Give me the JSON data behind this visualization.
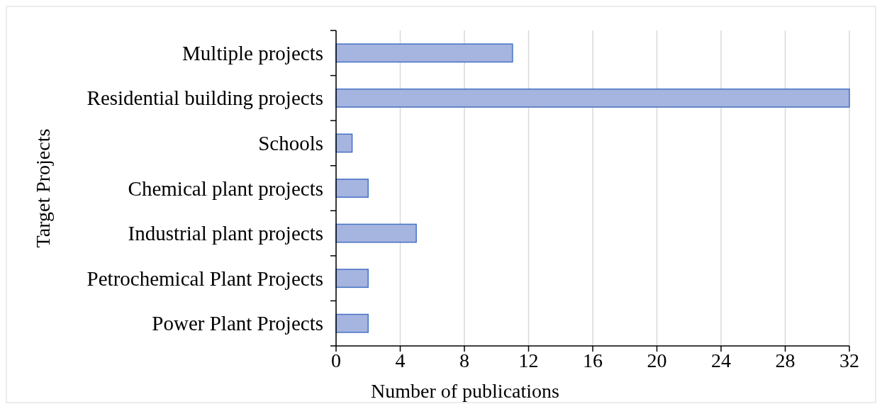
{
  "chart_data": {
    "type": "bar",
    "orientation": "horizontal",
    "xlabel": "Number of publications",
    "ylabel": "Target Projects",
    "categories": [
      "Multiple projects",
      "Residential building projects",
      "Schools",
      "Chemical plant projects",
      "Industrial plant projects",
      "Petrochemical Plant Projects",
      "Power Plant Projects"
    ],
    "values": [
      11,
      32,
      1,
      2,
      5,
      2,
      2
    ],
    "color": "#a6b4e0",
    "xlim": [
      0,
      32
    ],
    "xticks": [
      0,
      4,
      8,
      12,
      16,
      20,
      24,
      28,
      32
    ],
    "grid": "x"
  }
}
